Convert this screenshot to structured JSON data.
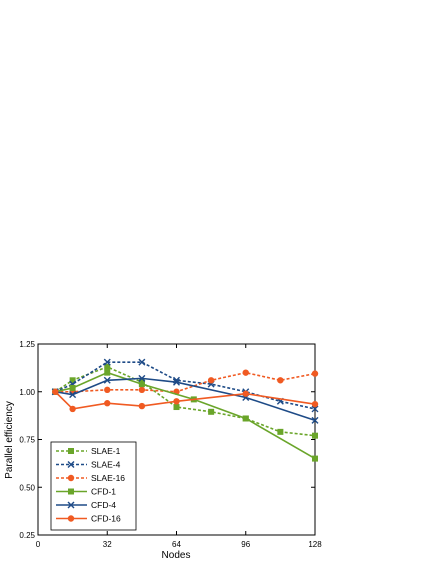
{
  "chart_data": {
    "type": "line",
    "title": "",
    "xlabel": "Nodes",
    "ylabel": "Parallel efficiency",
    "xlim": [
      0,
      128
    ],
    "ylim": [
      0.25,
      1.25
    ],
    "xticks": [
      0,
      32,
      64,
      96,
      128
    ],
    "xtick_labels": [
      "0",
      "32",
      "64",
      "96",
      "128"
    ],
    "yticks": [
      0.25,
      0.5,
      0.75,
      1.0,
      1.25
    ],
    "ytick_labels": [
      "0.25",
      "0.50",
      "0.75",
      "1.00",
      "1.25"
    ],
    "grid": false,
    "legend_position": "bottom-left",
    "series": [
      {
        "name": "SLAE-1",
        "color": "#6aa52a",
        "dashed": true,
        "marker": "square",
        "x": [
          8,
          16,
          32,
          48,
          64,
          80,
          96,
          112,
          128
        ],
        "y": [
          1.0,
          1.06,
          1.13,
          1.05,
          0.92,
          0.895,
          0.86,
          0.79,
          0.77
        ]
      },
      {
        "name": "SLAE-4",
        "color": "#1e4b87",
        "dashed": true,
        "marker": "x",
        "x": [
          8,
          16,
          32,
          48,
          64,
          80,
          96,
          112,
          128
        ],
        "y": [
          1.0,
          1.04,
          1.155,
          1.155,
          1.06,
          1.04,
          1.0,
          0.95,
          0.91
        ]
      },
      {
        "name": "SLAE-16",
        "color": "#f05a22",
        "dashed": true,
        "marker": "circle",
        "x": [
          8,
          16,
          32,
          48,
          64,
          80,
          96,
          112,
          128
        ],
        "y": [
          1.0,
          1.0,
          1.01,
          1.01,
          1.0,
          1.06,
          1.1,
          1.06,
          1.095
        ]
      },
      {
        "name": "CFD-1",
        "color": "#6aa52a",
        "dashed": false,
        "marker": "square",
        "x": [
          8,
          16,
          32,
          48,
          72,
          96,
          128
        ],
        "y": [
          1.0,
          1.02,
          1.1,
          1.04,
          0.96,
          0.86,
          0.65
        ]
      },
      {
        "name": "CFD-4",
        "color": "#1e4b87",
        "dashed": false,
        "marker": "x",
        "x": [
          8,
          16,
          32,
          48,
          64,
          96,
          128
        ],
        "y": [
          1.0,
          0.985,
          1.06,
          1.07,
          1.05,
          0.97,
          0.85
        ]
      },
      {
        "name": "CFD-16",
        "color": "#f05a22",
        "dashed": false,
        "marker": "circle",
        "x": [
          8,
          16,
          32,
          48,
          64,
          96,
          128
        ],
        "y": [
          1.0,
          0.91,
          0.94,
          0.925,
          0.95,
          0.99,
          0.935
        ]
      }
    ]
  }
}
